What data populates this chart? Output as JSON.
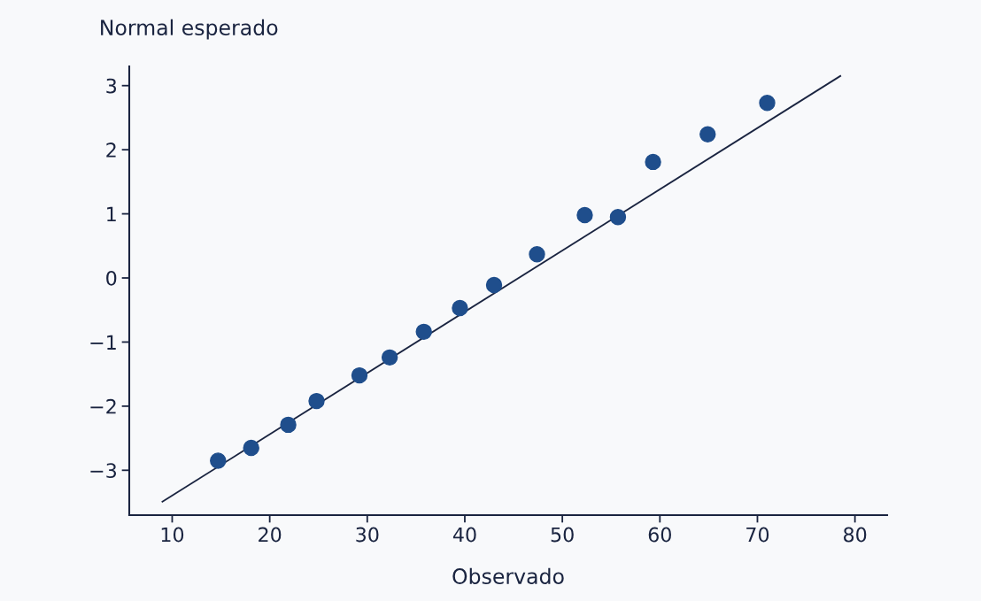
{
  "chart_data": {
    "type": "scatter",
    "xlabel": "Observado",
    "ylabel": "Normal esperado",
    "series": [
      {
        "color": "#1f4e8c",
        "marker": "circle",
        "x": [
          14.7,
          18.1,
          21.9,
          24.8,
          29.2,
          32.3,
          35.8,
          39.5,
          43.0,
          47.4,
          52.3,
          55.7,
          59.3,
          64.9,
          71.0
        ],
        "values": [
          -2.85,
          -2.65,
          -2.29,
          -1.92,
          -1.52,
          -1.24,
          -0.84,
          -0.47,
          -0.11,
          0.37,
          0.98,
          0.95,
          1.81,
          2.24,
          2.73
        ]
      },
      {
        "type": "line",
        "marker": "none",
        "color": "#1a2440",
        "x": [
          9.0,
          78.5
        ],
        "values": [
          -3.49,
          3.15
        ]
      }
    ],
    "xlim": [
      5.6,
      83.3
    ],
    "ylim": [
      -3.7,
      3.3
    ],
    "xticks": [
      10,
      20,
      30,
      40,
      50,
      60,
      70,
      80
    ],
    "yticks": [
      {
        "value": -3,
        "label": "−3"
      },
      {
        "value": -2,
        "label": "−2"
      },
      {
        "value": -1,
        "label": "−1"
      },
      0,
      1,
      2,
      3
    ],
    "grid": false,
    "legend": false,
    "line_style": "solid"
  }
}
